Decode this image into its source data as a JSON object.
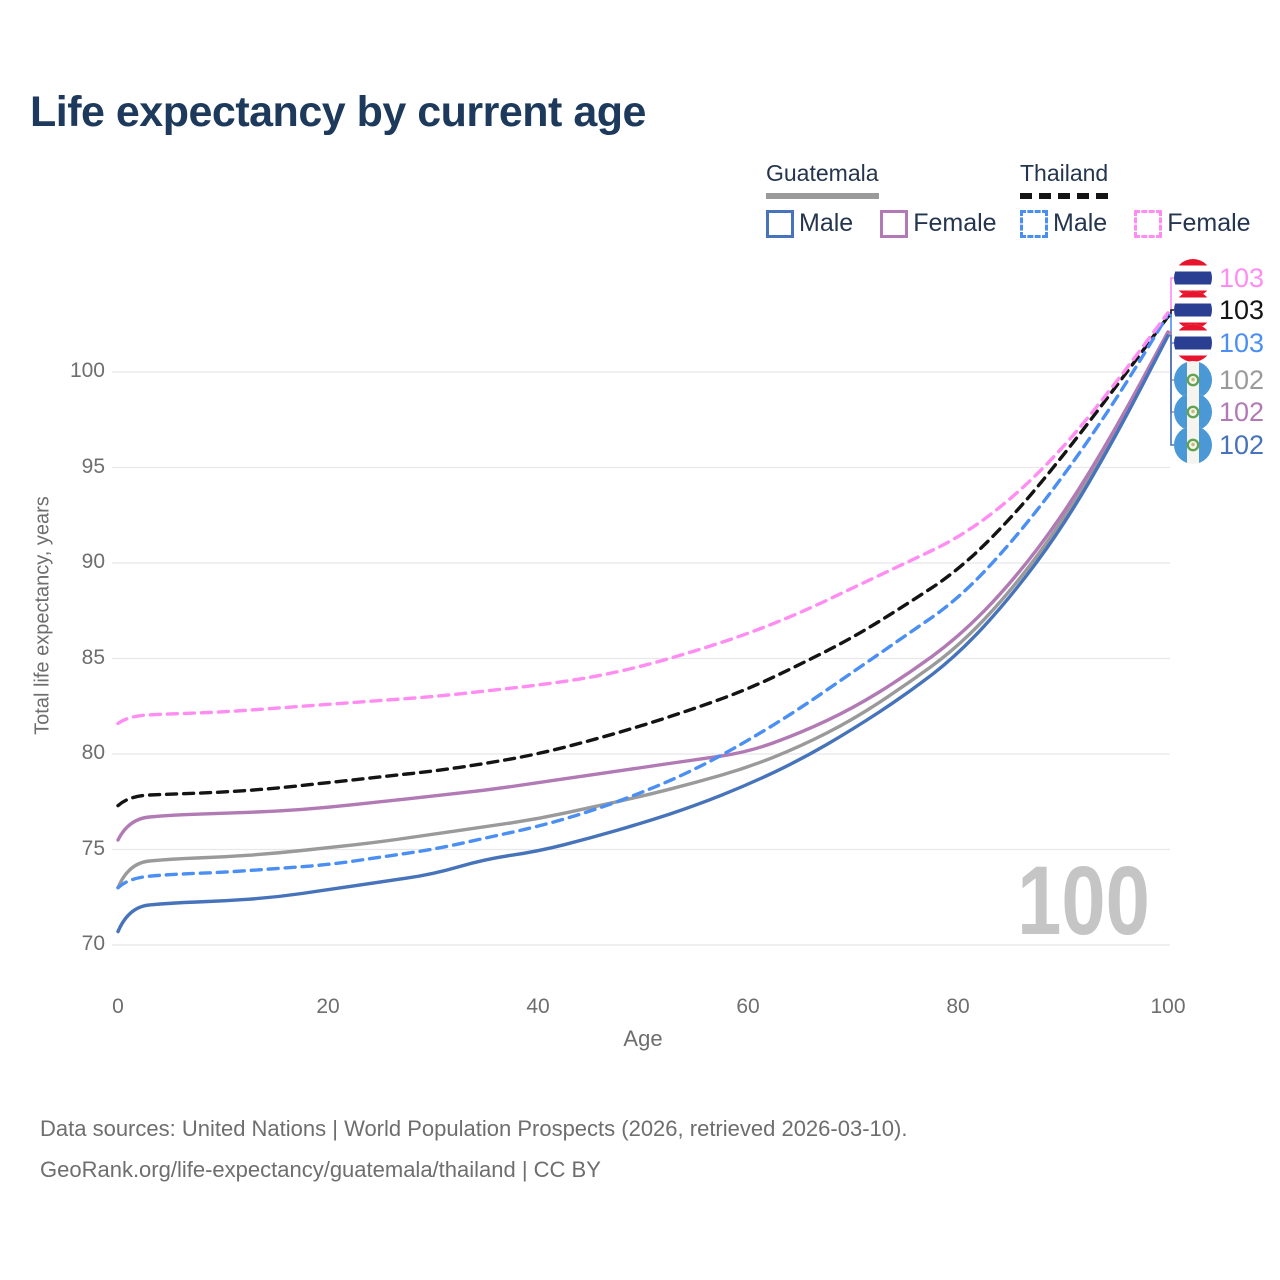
{
  "title": "Life expectancy by current age",
  "legend": {
    "groups": [
      {
        "name": "Guatemala",
        "line_style": "solid",
        "underline_color": "#9a9a9a",
        "items": [
          {
            "label": "Male",
            "color": "#4673b9"
          },
          {
            "label": "Female",
            "color": "#b27ab5"
          }
        ]
      },
      {
        "name": "Thailand",
        "line_style": "dashed",
        "underline_color": "#141414",
        "items": [
          {
            "label": "Male",
            "color": "#4b8ff2"
          },
          {
            "label": "Female",
            "color": "#ff8df2"
          }
        ]
      }
    ]
  },
  "watermark_age": "100",
  "end_labels": [
    {
      "value": "103",
      "series": "Thailand Female",
      "flag": "thailand-flag",
      "color": "#ff8df2"
    },
    {
      "value": "103",
      "series": "Thailand Both sexes",
      "flag": "thailand-flag",
      "color": "#141414"
    },
    {
      "value": "103",
      "series": "Thailand Male",
      "flag": "thailand-flag",
      "color": "#4b8ff2"
    },
    {
      "value": "102",
      "series": "Guatemala Both sexes",
      "flag": "guatemala-flag",
      "color": "#9a9a9a"
    },
    {
      "value": "102",
      "series": "Guatemala Female",
      "flag": "guatemala-flag",
      "color": "#b27ab5"
    },
    {
      "value": "102",
      "series": "Guatemala Male",
      "flag": "guatemala-flag",
      "color": "#4673b9"
    }
  ],
  "footer": {
    "line1": "Data sources: United Nations | World Population Prospects (2026, retrieved 2026-03-10).",
    "line2": "GeoRank.org/life-expectancy/guatemala/thailand | CC BY"
  },
  "chart_data": {
    "type": "line",
    "title": "Life expectancy by current age",
    "xlabel": "Age",
    "ylabel": "Total life expectancy, years",
    "xlim": [
      0,
      100
    ],
    "ylim": [
      69,
      104
    ],
    "x_ticks": [
      0,
      20,
      40,
      60,
      80,
      100
    ],
    "y_ticks": [
      70,
      75,
      80,
      85,
      90,
      95,
      100
    ],
    "grid": "horizontal-only",
    "legend_position": "top-right",
    "x": [
      0,
      1,
      5,
      10,
      15,
      20,
      25,
      30,
      35,
      40,
      45,
      50,
      55,
      60,
      65,
      70,
      75,
      80,
      85,
      90,
      95,
      100
    ],
    "series": [
      {
        "name": "Guatemala Male",
        "color": "#4673b9",
        "dash": false,
        "values": [
          70.7,
          72.0,
          72.2,
          72.3,
          72.5,
          72.9,
          73.3,
          73.7,
          74.5,
          74.9,
          75.6,
          76.4,
          77.3,
          78.4,
          79.7,
          81.3,
          83.1,
          85.2,
          88.2,
          91.9,
          96.6,
          101.9
        ]
      },
      {
        "name": "Guatemala Female",
        "color": "#b27ab5",
        "dash": false,
        "values": [
          75.5,
          76.6,
          76.8,
          76.9,
          77.0,
          77.2,
          77.5,
          77.8,
          78.1,
          78.5,
          78.9,
          79.3,
          79.7,
          80.1,
          81.1,
          82.4,
          84.1,
          86.1,
          88.9,
          92.5,
          97.0,
          102.1
        ]
      },
      {
        "name": "Guatemala Both sexes",
        "color": "#9a9a9a",
        "dash": false,
        "values": [
          73.0,
          74.3,
          74.5,
          74.6,
          74.8,
          75.1,
          75.4,
          75.8,
          76.2,
          76.6,
          77.2,
          77.8,
          78.5,
          79.3,
          80.4,
          81.8,
          83.6,
          85.6,
          88.5,
          92.2,
          96.8,
          102.0
        ]
      },
      {
        "name": "Thailand Male",
        "color": "#4b8ff2",
        "dash": true,
        "values": [
          73.0,
          73.5,
          73.7,
          73.8,
          74.0,
          74.2,
          74.6,
          75.0,
          75.6,
          76.2,
          77.0,
          78.0,
          79.2,
          80.7,
          82.4,
          84.3,
          86.2,
          88.1,
          91.0,
          94.5,
          98.5,
          103.0
        ]
      },
      {
        "name": "Thailand Female",
        "color": "#ff8df2",
        "dash": true,
        "values": [
          81.6,
          82.0,
          82.1,
          82.2,
          82.4,
          82.6,
          82.8,
          83.0,
          83.3,
          83.6,
          84.0,
          84.6,
          85.4,
          86.3,
          87.4,
          88.7,
          90.0,
          91.3,
          93.3,
          96.0,
          99.4,
          103.1
        ]
      },
      {
        "name": "Thailand Both sexes",
        "color": "#141414",
        "dash": true,
        "values": [
          77.3,
          77.8,
          77.9,
          78.0,
          78.2,
          78.5,
          78.8,
          79.1,
          79.5,
          80.0,
          80.7,
          81.5,
          82.4,
          83.4,
          84.7,
          86.1,
          87.8,
          89.6,
          92.3,
          95.6,
          99.2,
          102.9
        ]
      }
    ]
  }
}
